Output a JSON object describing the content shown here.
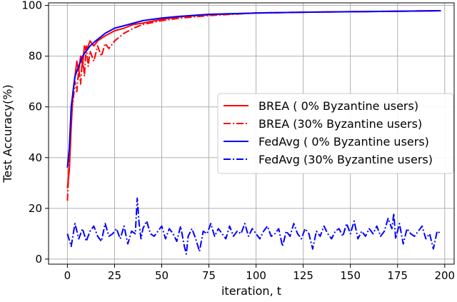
{
  "chart_data": {
    "type": "line",
    "xlabel": "iteration, t",
    "ylabel": "Test Accuracy(%)",
    "xlim": [
      -10,
      205
    ],
    "ylim": [
      -2,
      101
    ],
    "xticks": [
      0,
      25,
      50,
      75,
      100,
      125,
      150,
      175,
      200
    ],
    "yticks": [
      0,
      20,
      40,
      60,
      80,
      100
    ],
    "grid": true,
    "legend_position": "center-right",
    "series": [
      {
        "name": "BREA ( 0% Byzantine users)",
        "color": "#ff0000",
        "style": "solid",
        "x": [
          0,
          1,
          2,
          3,
          4,
          5,
          6,
          7,
          8,
          9,
          10,
          12,
          14,
          16,
          18,
          20,
          25,
          30,
          35,
          40,
          50,
          60,
          75,
          100,
          125,
          150,
          175,
          198
        ],
        "y": [
          28,
          35,
          52,
          66,
          72,
          78,
          74,
          80,
          76,
          84,
          82,
          86,
          84,
          86,
          87,
          88,
          90,
          91,
          92.5,
          93,
          94.5,
          95.5,
          96.3,
          97,
          97.3,
          97.5,
          97.7,
          97.9
        ]
      },
      {
        "name": "BREA (30% Byzantine users)",
        "color": "#ff0000",
        "style": "dashdot",
        "x": [
          0,
          1,
          2,
          3,
          4,
          5,
          6,
          7,
          8,
          9,
          10,
          11,
          12,
          14,
          16,
          18,
          20,
          22,
          25,
          30,
          35,
          40,
          50,
          60,
          75,
          100,
          125,
          150,
          175,
          198
        ],
        "y": [
          23,
          40,
          58,
          62,
          70,
          66,
          75,
          69,
          80,
          72,
          84,
          76,
          82,
          78,
          84,
          80,
          85,
          83,
          86,
          89,
          91,
          92.5,
          94,
          95,
          96,
          97,
          97.3,
          97.5,
          97.7,
          97.9
        ]
      },
      {
        "name": "FedAvg ( 0% Byzantine users)",
        "color": "#0000ff",
        "style": "solid",
        "x": [
          0,
          1,
          2,
          3,
          4,
          5,
          6,
          7,
          8,
          10,
          12,
          15,
          20,
          25,
          30,
          40,
          50,
          60,
          75,
          100,
          125,
          150,
          175,
          198
        ],
        "y": [
          36,
          44,
          60,
          66,
          72,
          74,
          76,
          78,
          80,
          82,
          84,
          86,
          89,
          91,
          92,
          94,
          95,
          95.7,
          96.5,
          97,
          97.3,
          97.5,
          97.7,
          97.9
        ]
      },
      {
        "name": "FedAvg (30% Byzantine users)",
        "color": "#0000ff",
        "style": "dashdot",
        "x": [
          0,
          2,
          4,
          6,
          8,
          10,
          12,
          14,
          16,
          18,
          20,
          22,
          24,
          26,
          28,
          30,
          32,
          34,
          36,
          37,
          38,
          39,
          40,
          42,
          44,
          46,
          48,
          50,
          52,
          54,
          56,
          58,
          60,
          62,
          63,
          64,
          66,
          68,
          70,
          72,
          74,
          76,
          78,
          80,
          82,
          84,
          86,
          88,
          90,
          92,
          94,
          96,
          98,
          100,
          102,
          104,
          106,
          108,
          110,
          112,
          114,
          116,
          118,
          120,
          122,
          124,
          126,
          128,
          130,
          132,
          134,
          136,
          138,
          140,
          142,
          144,
          146,
          148,
          150,
          152,
          154,
          156,
          158,
          160,
          162,
          164,
          166,
          168,
          170,
          172,
          173,
          174,
          176,
          178,
          180,
          182,
          184,
          186,
          188,
          190,
          192,
          194,
          196,
          198
        ],
        "y": [
          10,
          5,
          14,
          8,
          12,
          7,
          11,
          13,
          9,
          7,
          14,
          9,
          10,
          12,
          8,
          13,
          6,
          11,
          10,
          24,
          14,
          8,
          12,
          15,
          10,
          9,
          11,
          13,
          8,
          12,
          10,
          7,
          13,
          5,
          2,
          9,
          12,
          8,
          3,
          11,
          10,
          14,
          9,
          12,
          10,
          8,
          13,
          9,
          11,
          10,
          14,
          9,
          12,
          10,
          8,
          11,
          13,
          9,
          10,
          12,
          5,
          11,
          9,
          14,
          10,
          8,
          12,
          10,
          4,
          11,
          9,
          13,
          10,
          8,
          11,
          12,
          9,
          14,
          10,
          15,
          8,
          11,
          9,
          12,
          10,
          13,
          9,
          11,
          16,
          12,
          18,
          8,
          14,
          6,
          12,
          10,
          9,
          11,
          13,
          8,
          10,
          4,
          11,
          10
        ]
      }
    ]
  }
}
